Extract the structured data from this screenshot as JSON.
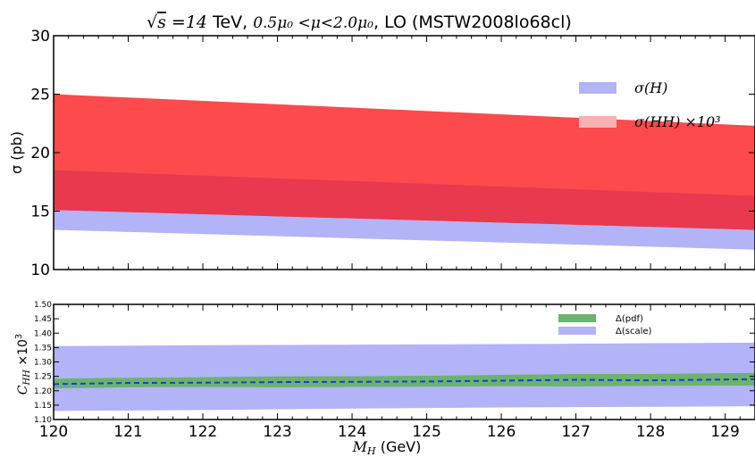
{
  "chart_data": [
    {
      "type": "area",
      "title": "√s = 14 TeV, 0.5μ₀ < μ < 2.0μ₀, LO (MSTW2008lo68cl)",
      "title_parts": {
        "sqrt_s": "√",
        "s": "s",
        "eq_14": " =14",
        "tev": " TeV, ",
        "mu_range": "0.5μ₀ <μ<2.0μ₀",
        "lo": ", LO (MSTW2008lo68cl)"
      },
      "xlabel": "",
      "ylabel": "σ (pb)",
      "xlim": [
        120,
        129.4
      ],
      "ylim": [
        10,
        30
      ],
      "yticks": [
        10,
        15,
        20,
        25,
        30
      ],
      "grid": false,
      "legend_position": "top-right",
      "series": [
        {
          "name": "σ(H)",
          "color": "#b3b3f7",
          "x": [
            120,
            129.4
          ],
          "lower": [
            13.4,
            11.7
          ],
          "upper": [
            18.5,
            16.3
          ]
        },
        {
          "name": "σ(HH) ×10³",
          "color": "#fc4a4d",
          "x": [
            120,
            129.4
          ],
          "lower": [
            15.1,
            13.4
          ],
          "upper": [
            25.0,
            22.3
          ]
        }
      ],
      "overlap_color": "#e8394e"
    },
    {
      "type": "area",
      "xlabel": "M_H (GeV)",
      "xlabel_parts": {
        "sym": "M",
        "sub": "H",
        "unit": " (GeV)"
      },
      "ylabel": "C_HH ×10³",
      "ylabel_parts": {
        "sym": "C",
        "sub": "HH",
        "mult": " ×10",
        "sup": "3"
      },
      "xlim": [
        120,
        129.4
      ],
      "ylim": [
        1.1,
        1.5
      ],
      "xticks": [
        120,
        121,
        122,
        123,
        124,
        125,
        126,
        127,
        128,
        129
      ],
      "yticks": [
        "1.10",
        "1.15",
        "1.20",
        "1.25",
        "1.30",
        "1.35",
        "1.40",
        "1.45",
        "1.50"
      ],
      "grid": false,
      "legend_position": "top-right",
      "series": [
        {
          "name": "Δ(scale)",
          "color": "#b3b3f7",
          "x": [
            120,
            122,
            124,
            126,
            128,
            129.4
          ],
          "lower": [
            1.13,
            1.133,
            1.138,
            1.142,
            1.144,
            1.146
          ],
          "upper": [
            1.355,
            1.358,
            1.36,
            1.362,
            1.365,
            1.367
          ]
        },
        {
          "name": "Δ(pdf)",
          "color": "#6bb36e",
          "x": [
            120,
            121,
            122,
            123,
            124,
            125,
            126,
            127,
            128,
            129.4
          ],
          "lower": [
            1.208,
            1.212,
            1.213,
            1.212,
            1.213,
            1.214,
            1.216,
            1.215,
            1.217,
            1.218
          ],
          "upper": [
            1.242,
            1.245,
            1.247,
            1.25,
            1.25,
            1.252,
            1.255,
            1.258,
            1.258,
            1.262
          ]
        },
        {
          "name": "",
          "style": "dashed-line",
          "color": "#1f3bd6",
          "x": [
            120,
            121,
            122,
            123,
            124,
            125,
            126,
            127,
            128,
            129.4
          ],
          "y": [
            1.223,
            1.227,
            1.228,
            1.23,
            1.231,
            1.232,
            1.235,
            1.238,
            1.236,
            1.24
          ]
        }
      ]
    }
  ]
}
